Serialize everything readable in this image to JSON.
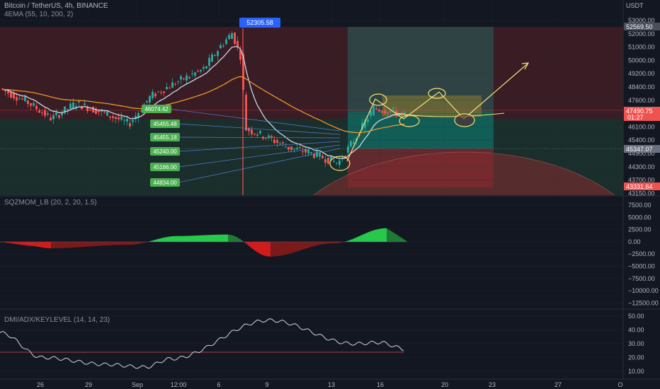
{
  "header": {
    "symbol": "Bitcoin / TetherUS, 4h, BINANCE",
    "ema_label": "4EMA (55, 10, 200, 2)",
    "currency": "USDT"
  },
  "main_axis": {
    "ticks": [
      "53000.00",
      "52000.00",
      "51000.00",
      "50000.00",
      "49200.00",
      "48400.00",
      "47600.00",
      "46850.00",
      "46100.00",
      "45400.00",
      "44900.00",
      "44300.00",
      "43700.00",
      "43150.00"
    ],
    "tags": {
      "top": "52569.50",
      "current": "47490.75",
      "countdown": "01:27",
      "mid": "45347.07",
      "low": "43331.64"
    }
  },
  "price_callout": "52305.58",
  "levels": [
    "46074.42",
    "45455.48",
    "45455.18",
    "45240.00",
    "45166.00",
    "44834.00"
  ],
  "momentum_panel": {
    "title": "SQZMOM_LB (20, 2, 20, 1.5)",
    "ticks": [
      "7500.00",
      "5000.00",
      "2500.00",
      "0.00",
      "−2500.00",
      "−5000.00",
      "−7500.00",
      "−10000.00",
      "−12500.00"
    ]
  },
  "dmi_panel": {
    "title": "DMI/ADX/KEYLEVEL (14, 14, 23)",
    "ticks": [
      "50.00",
      "40.00",
      "30.00",
      "20.00",
      "10.00"
    ]
  },
  "time_axis": [
    "26",
    "29",
    "Sep",
    "12:00",
    "6",
    "9",
    "13",
    "16",
    "20",
    "23",
    "27",
    "O"
  ],
  "colors": {
    "up": "#26a69a",
    "down": "#ef5350",
    "ema_fast": "#c8d6e5",
    "ema_slow": "#f0932b",
    "projection": "#f5e27a",
    "callout": "#2962ff"
  },
  "chart_data": [
    {
      "type": "line",
      "title": "Bitcoin / TetherUS, 4h, BINANCE",
      "series": [
        {
          "name": "4EMA (55, 10, 200, 2)",
          "x": [
            "26",
            "29",
            "Sep",
            "12:00",
            "6",
            "9",
            "13",
            "16",
            "20"
          ],
          "values": [
            49100,
            47200,
            47000,
            49300,
            52300,
            46400,
            44900,
            48000,
            47490.75
          ]
        }
      ],
      "ylim": [
        43150,
        53000
      ]
    },
    {
      "type": "bar",
      "title": "SQZMOM_LB (20, 2, 20, 1.5)",
      "x": [
        "26",
        "29",
        "Sep",
        "12:00",
        "6",
        "9",
        "13",
        "16"
      ],
      "values": [
        -800,
        -1300,
        -600,
        1200,
        1500,
        -3000,
        -300,
        2800
      ],
      "ylim": [
        -12500,
        7500
      ]
    },
    {
      "type": "line",
      "title": "DMI/ADX/KEYLEVEL (14, 14, 23)",
      "x": [
        "26",
        "29",
        "Sep",
        "12:00",
        "6",
        "9",
        "13",
        "16"
      ],
      "values": [
        38,
        20,
        15,
        13,
        19,
        47,
        30,
        31
      ],
      "key_level": 23,
      "ylim": [
        5,
        52
      ]
    }
  ]
}
